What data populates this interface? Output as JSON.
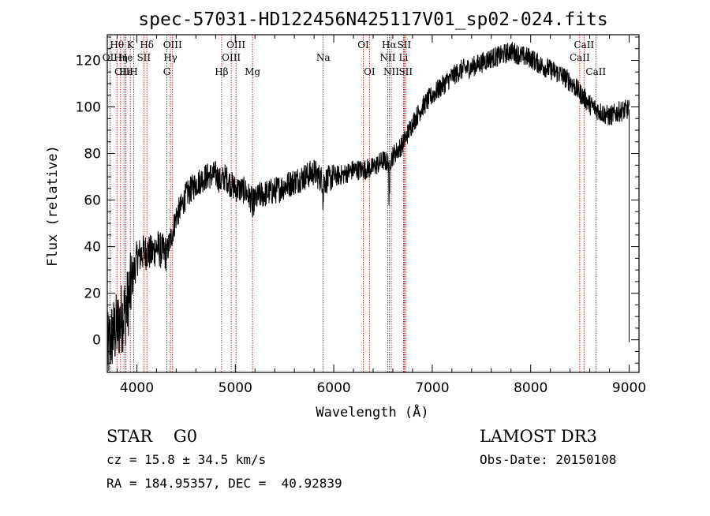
{
  "chart_data": {
    "type": "line",
    "title": "spec-57031-HD122456N425117V01_sp02-024.fits",
    "xlabel": "Wavelength (Å)",
    "ylabel": "Flux (relative)",
    "xlim": [
      3700,
      9100
    ],
    "ylim": [
      -14,
      131
    ],
    "xticks": [
      4000,
      5000,
      6000,
      7000,
      8000,
      9000
    ],
    "yticks": [
      0,
      20,
      40,
      60,
      80,
      100,
      120
    ],
    "series": [
      {
        "name": "spectrum",
        "x": [
          3700,
          3750,
          3800,
          3850,
          3900,
          3950,
          4000,
          4050,
          4100,
          4150,
          4200,
          4250,
          4300,
          4350,
          4400,
          4450,
          4500,
          4600,
          4700,
          4800,
          4850,
          4900,
          4950,
          5000,
          5100,
          5180,
          5250,
          5400,
          5500,
          5600,
          5700,
          5800,
          5900,
          6000,
          6100,
          6200,
          6300,
          6400,
          6500,
          6560,
          6600,
          6700,
          6800,
          6900,
          7000,
          7100,
          7200,
          7300,
          7400,
          7500,
          7600,
          7700,
          7800,
          7900,
          8000,
          8100,
          8200,
          8300,
          8400,
          8500,
          8600,
          8700,
          8800,
          8900,
          9000
        ],
        "y": [
          -5,
          2,
          5,
          10,
          14,
          25,
          35,
          37,
          38,
          37,
          40,
          38,
          37,
          44,
          53,
          57,
          62,
          67,
          70,
          71,
          68,
          70,
          67,
          65,
          64,
          59,
          62,
          64,
          66,
          68,
          70,
          72,
          68,
          70,
          71,
          73,
          73,
          74,
          77,
          76,
          79,
          84,
          93,
          100,
          105,
          109,
          113,
          116,
          117,
          119,
          121,
          122,
          124,
          122,
          121,
          118,
          116,
          114,
          111,
          106,
          101,
          98,
          96,
          98,
          99
        ]
      }
    ],
    "line_ids": [
      {
        "label": "Hθ",
        "x": 3798,
        "row": 1
      },
      {
        "label": "OII",
        "x": 3727,
        "row": 2
      },
      {
        "label": "Hη",
        "x": 3835,
        "row": 2
      },
      {
        "label": "OIII",
        "x": 3869,
        "row": 3
      },
      {
        "label": "K",
        "x": 3934,
        "row": 1
      },
      {
        "label": "He",
        "x": 3889,
        "row": 2
      },
      {
        "label": "Hε",
        "x": 3889,
        "row": 3
      },
      {
        "label": "SII",
        "x": 4071,
        "row": 2
      },
      {
        "label": "H",
        "x": 3968,
        "row": 3
      },
      {
        "label": "Hδ",
        "x": 4102,
        "row": 1
      },
      {
        "label": "OIII",
        "x": 4363,
        "row": 1
      },
      {
        "label": "Hγ",
        "x": 4341,
        "row": 2
      },
      {
        "label": "G",
        "x": 4305,
        "row": 3
      },
      {
        "label": "Hβ",
        "x": 4861,
        "row": 3
      },
      {
        "label": "OIII",
        "x": 5007,
        "row": 1
      },
      {
        "label": "OIII",
        "x": 4959,
        "row": 2
      },
      {
        "label": "Mg",
        "x": 5175,
        "row": 3
      },
      {
        "label": "Na",
        "x": 5893,
        "row": 2
      },
      {
        "label": "OI",
        "x": 6300,
        "row": 1
      },
      {
        "label": "OI",
        "x": 6363,
        "row": 3
      },
      {
        "label": "Hα",
        "x": 6563,
        "row": 1
      },
      {
        "label": "SII",
        "x": 6716,
        "row": 1
      },
      {
        "label": "NII",
        "x": 6548,
        "row": 2
      },
      {
        "label": "Li",
        "x": 6708,
        "row": 2
      },
      {
        "label": "NII",
        "x": 6584,
        "row": 3
      },
      {
        "label": "SII",
        "x": 6731,
        "row": 3
      },
      {
        "label": "CaII",
        "x": 8542,
        "row": 1
      },
      {
        "label": "CaII",
        "x": 8498,
        "row": 2
      },
      {
        "label": "CaII",
        "x": 8662,
        "row": 3
      }
    ]
  },
  "info": {
    "class_text": "STAR    G0",
    "survey": "LAMOST DR3",
    "cz_text": "cz = 15.8 ± 34.5 km/s",
    "obs_date": "Obs-Date: 20150108",
    "coords": "RA = 184.95357, DEC =  40.92839"
  },
  "colors": {
    "spectrum": "#000000",
    "line_marker": "#b01818",
    "axis": "#000000"
  }
}
